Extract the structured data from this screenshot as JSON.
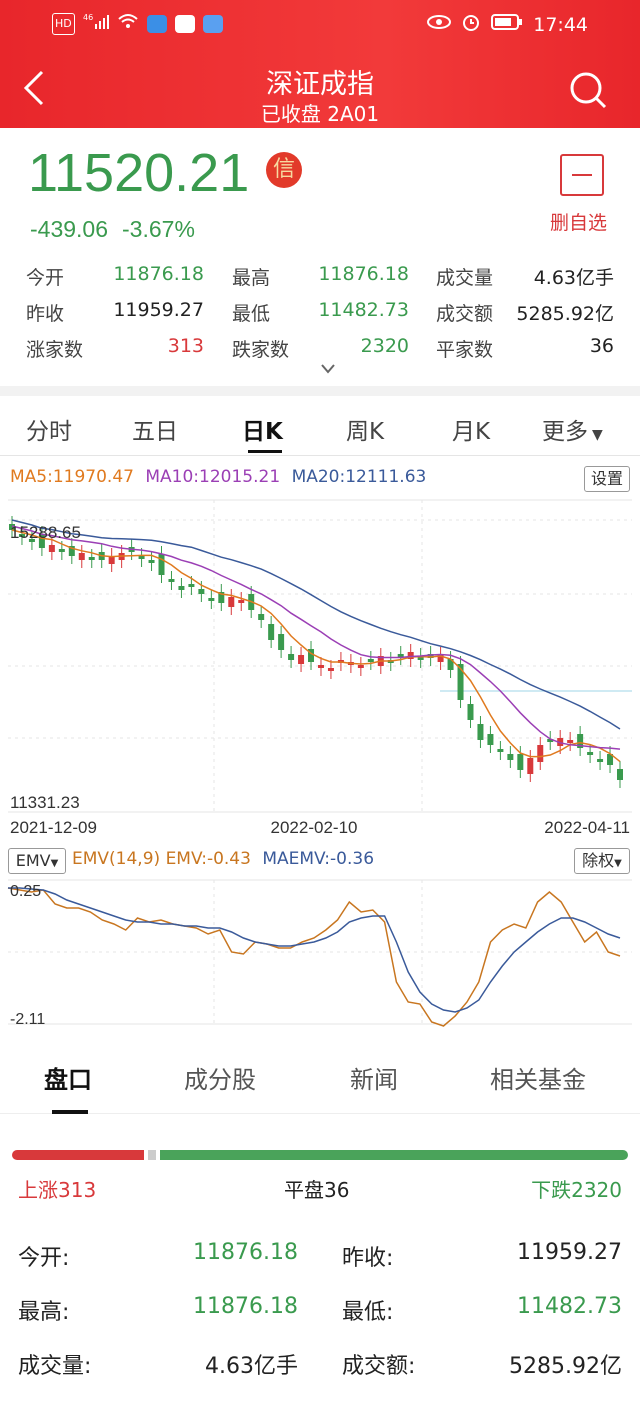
{
  "status_bar": {
    "time": "17:44",
    "network": "4G",
    "hd": "HD"
  },
  "header": {
    "title": "深证成指",
    "subtitle": "已收盘 2A01"
  },
  "quote": {
    "price": "11520.21",
    "badge": "信",
    "change": "-439.06",
    "change_pct": "-3.67%",
    "watch_label": "删自选"
  },
  "stats": [
    [
      {
        "label": "今开",
        "value": "11876.18",
        "color": "green"
      },
      {
        "label": "最高",
        "value": "11876.18",
        "color": "green"
      },
      {
        "label": "成交量",
        "value": "4.63亿手",
        "color": "black"
      }
    ],
    [
      {
        "label": "昨收",
        "value": "11959.27",
        "color": "black"
      },
      {
        "label": "最低",
        "value": "11482.73",
        "color": "green"
      },
      {
        "label": "成交额",
        "value": "5285.92亿",
        "color": "black"
      }
    ],
    [
      {
        "label": "涨家数",
        "value": "313",
        "color": "red"
      },
      {
        "label": "跌家数",
        "value": "2320",
        "color": "green"
      },
      {
        "label": "平家数",
        "value": "36",
        "color": "black"
      }
    ]
  ],
  "chart_tabs": [
    "分时",
    "五日",
    "日K",
    "周K",
    "月K",
    "更多"
  ],
  "active_chart_tab": "日K",
  "ma": {
    "ma5": "MA5:11970.47",
    "ma10": "MA10:12015.21",
    "ma20": "MA20:12111.63"
  },
  "settings_label": "设置",
  "emv_bar": {
    "selector": "EMV",
    "params": "EMV(14,9)",
    "emv": "EMV:-0.43",
    "maemv": "MAEMV:-0.36",
    "adjust": "除权"
  },
  "chart_data": [
    {
      "type": "candlestick",
      "title": "",
      "y_max_label": "15288.65",
      "y_min_label": "11331.23",
      "x_tick_labels": [
        "2021-12-09",
        "2022-02-10",
        "2022-04-11"
      ],
      "series": [
        {
          "name": "MA5",
          "last_value": 11970.47,
          "color": "#e07a1f"
        },
        {
          "name": "MA10",
          "last_value": 12015.21,
          "color": "#9b3fb5"
        },
        {
          "name": "MA20",
          "last_value": 12111.63,
          "color": "#3a5a9a"
        }
      ],
      "grid": true
    },
    {
      "type": "line",
      "title": "",
      "y_tick_labels": [
        "0.25",
        "-2.11"
      ],
      "series": [
        {
          "name": "EMV",
          "last_value": -0.43,
          "color": "#c87620"
        },
        {
          "name": "MAEMV",
          "last_value": -0.36,
          "color": "#3a5a9a"
        }
      ],
      "grid": true
    }
  ],
  "bottom_tabs": [
    "盘口",
    "成分股",
    "新闻",
    "相关基金"
  ],
  "breadth": {
    "up": "上涨313",
    "flat": "平盘36",
    "down": "下跌2320",
    "up_count": 313,
    "flat_count": 36,
    "down_count": 2320
  },
  "detail": [
    [
      {
        "label": "今开:",
        "value": "11876.18",
        "color": "green"
      },
      {
        "label": "昨收:",
        "value": "11959.27",
        "color": "black"
      }
    ],
    [
      {
        "label": "最高:",
        "value": "11876.18",
        "color": "green"
      },
      {
        "label": "最低:",
        "value": "11482.73",
        "color": "green"
      }
    ],
    [
      {
        "label": "成交量:",
        "value": "4.63亿手",
        "color": "black"
      },
      {
        "label": "成交额:",
        "value": "5285.92亿",
        "color": "black"
      }
    ]
  ],
  "colors": {
    "brand_red": "#e8262b",
    "down_green": "#3a9a4e",
    "up_red": "#d8393b"
  }
}
